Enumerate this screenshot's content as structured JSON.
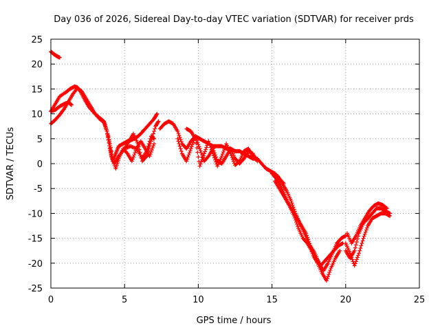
{
  "chart_data": {
    "type": "scatter",
    "title": "Day 036 of 2026, Sidereal Day-to-day VTEC variation (SDTVAR) for receiver prds",
    "xlabel": "GPS time / hours",
    "ylabel": "SDTVAR / TECUs",
    "xlim": [
      0,
      25
    ],
    "ylim": [
      -25,
      25
    ],
    "xticks": [
      0,
      5,
      10,
      15,
      20,
      25
    ],
    "yticks": [
      -25,
      -20,
      -15,
      -10,
      -5,
      0,
      5,
      10,
      15,
      20,
      25
    ],
    "grid": true,
    "marker": "+",
    "color": "#ff0000",
    "series": [
      {
        "name": "s1",
        "x": [
          0.0,
          0.2,
          0.4,
          0.6
        ],
        "y": [
          22.5,
          22.0,
          21.6,
          21.3
        ]
      },
      {
        "name": "s2",
        "x": [
          0.0,
          0.3,
          0.6,
          1.0,
          1.3,
          1.6,
          1.8,
          2.0,
          2.3,
          2.6,
          3.0,
          3.3,
          3.6,
          3.8,
          4.0,
          4.2,
          4.4,
          4.6,
          4.9,
          5.2,
          5.5,
          5.8,
          6.1,
          6.4,
          6.7,
          7.0,
          7.2
        ],
        "y": [
          10.5,
          12.0,
          13.5,
          14.3,
          15.0,
          15.5,
          15.3,
          14.5,
          12.8,
          11.3,
          10.0,
          9.2,
          8.5,
          6.5,
          3.0,
          0.5,
          2.0,
          3.5,
          4.0,
          4.5,
          4.8,
          5.2,
          6.0,
          7.0,
          8.0,
          9.0,
          10.0
        ]
      },
      {
        "name": "s3",
        "x": [
          0.0,
          0.3,
          0.6,
          0.9,
          1.2,
          1.5,
          1.8,
          2.1,
          2.4,
          2.7,
          3.0,
          3.3,
          3.6,
          3.8,
          4.0,
          4.1,
          4.3,
          4.6,
          5.0,
          5.4,
          5.8,
          6.2,
          6.5,
          6.8,
          7.0
        ],
        "y": [
          8.0,
          8.8,
          9.8,
          11.0,
          12.5,
          14.0,
          15.2,
          14.5,
          13.0,
          11.5,
          10.0,
          9.0,
          8.3,
          6.5,
          4.0,
          1.5,
          0.0,
          1.5,
          3.0,
          3.5,
          3.0,
          1.0,
          2.5,
          5.5,
          5.0
        ]
      },
      {
        "name": "s4",
        "x": [
          0.0,
          0.3,
          0.6,
          0.9,
          1.2,
          1.4
        ],
        "y": [
          10.5,
          10.8,
          11.5,
          12.0,
          12.3,
          11.8
        ]
      },
      {
        "name": "s5",
        "x": [
          3.9,
          4.2,
          4.4,
          4.6,
          4.9,
          5.2,
          5.5,
          5.8,
          6.1,
          6.4,
          6.7,
          7.0
        ],
        "y": [
          5.5,
          1.0,
          -1.0,
          1.0,
          3.0,
          2.0,
          0.5,
          3.0,
          4.5,
          3.0,
          1.5,
          4.0
        ]
      },
      {
        "name": "s6",
        "x": [
          5.0,
          5.3,
          5.6,
          5.9,
          6.2,
          6.5,
          6.8,
          7.1,
          7.3
        ],
        "y": [
          3.0,
          4.5,
          6.0,
          4.0,
          0.5,
          1.5,
          4.5,
          7.5,
          8.5
        ]
      },
      {
        "name": "s7",
        "x": [
          7.4,
          7.7,
          8.0,
          8.3,
          8.6,
          8.9,
          9.2,
          9.5,
          9.8,
          10.1,
          10.4,
          10.7,
          11.0,
          11.3,
          11.6,
          11.9,
          12.2,
          12.5,
          12.8,
          13.1,
          13.4,
          13.7,
          14.0,
          14.3,
          14.6,
          14.9,
          15.2,
          15.5,
          15.8
        ],
        "y": [
          7.0,
          8.0,
          8.5,
          8.0,
          6.5,
          4.0,
          3.0,
          4.5,
          5.5,
          5.0,
          4.5,
          4.0,
          3.5,
          3.5,
          3.5,
          3.0,
          3.0,
          2.5,
          2.5,
          2.0,
          1.5,
          1.0,
          1.0,
          0.0,
          -1.0,
          -1.5,
          -2.0,
          -3.0,
          -4.0
        ]
      },
      {
        "name": "s8",
        "x": [
          8.6,
          8.9,
          9.2,
          9.5,
          9.8,
          10.1,
          10.4,
          10.7,
          11.0,
          11.3,
          11.6,
          11.9,
          12.2,
          12.5,
          12.8,
          13.1,
          13.4,
          13.7,
          14.0
        ],
        "y": [
          5.0,
          2.0,
          0.5,
          3.0,
          5.5,
          3.0,
          0.5,
          1.5,
          3.0,
          0.5,
          0.0,
          1.5,
          3.0,
          1.0,
          0.0,
          1.0,
          2.5,
          2.0,
          0.5
        ]
      },
      {
        "name": "s9",
        "x": [
          9.2,
          9.5,
          9.8,
          10.1,
          10.4,
          10.7,
          11.0,
          11.3,
          11.6,
          11.9,
          12.2,
          12.5,
          12.8,
          13.1,
          13.4,
          13.7
        ],
        "y": [
          7.0,
          6.5,
          5.0,
          -0.5,
          2.0,
          4.5,
          2.0,
          -0.5,
          1.5,
          4.0,
          2.0,
          -0.3,
          0.5,
          2.5,
          3.0,
          1.5
        ]
      },
      {
        "name": "s10",
        "x": [
          15.0,
          15.3,
          15.6,
          15.9,
          16.2,
          16.5,
          16.8,
          17.1,
          17.4,
          17.7,
          18.0,
          18.3,
          18.6,
          18.9,
          19.2,
          19.5,
          19.8
        ],
        "y": [
          -2.0,
          -3.0,
          -4.5,
          -6.5,
          -8.5,
          -10.5,
          -13.0,
          -15.0,
          -16.0,
          -17.5,
          -19.0,
          -20.5,
          -19.5,
          -18.5,
          -17.5,
          -16.5,
          -16.0
        ]
      },
      {
        "name": "s11",
        "x": [
          15.4,
          15.7,
          16.0,
          16.3,
          16.6,
          16.9,
          17.2,
          17.5,
          17.8,
          18.1,
          18.4,
          18.7,
          19.0,
          19.3,
          19.6
        ],
        "y": [
          -2.5,
          -4.0,
          -5.5,
          -7.5,
          -10.0,
          -12.0,
          -14.0,
          -16.0,
          -18.5,
          -20.0,
          -22.0,
          -23.5,
          -21.0,
          -19.0,
          -17.5
        ]
      },
      {
        "name": "s12",
        "x": [
          15.2,
          15.5,
          15.8,
          16.1,
          16.4,
          16.7,
          17.0,
          17.3,
          17.6,
          17.9,
          18.2,
          18.5,
          18.8,
          19.1,
          19.4,
          19.7,
          20.0
        ],
        "y": [
          -3.5,
          -5.0,
          -6.5,
          -8.0,
          -9.5,
          -11.0,
          -12.5,
          -14.0,
          -16.5,
          -18.0,
          -20.0,
          -21.5,
          -20.0,
          -18.0,
          -16.0,
          -15.0,
          -14.5
        ]
      },
      {
        "name": "s13",
        "x": [
          20.0,
          20.3,
          20.6,
          20.9,
          21.2,
          21.5,
          21.8,
          22.1,
          22.4,
          22.7,
          23.0
        ],
        "y": [
          -17.5,
          -19.0,
          -17.5,
          -14.0,
          -12.0,
          -11.0,
          -10.0,
          -9.0,
          -9.0,
          -9.5,
          -10.0
        ]
      },
      {
        "name": "s14",
        "x": [
          20.0,
          20.3,
          20.6,
          20.9,
          21.2,
          21.5,
          21.8,
          22.1,
          22.4,
          22.7,
          23.0
        ],
        "y": [
          -16.0,
          -18.0,
          -20.5,
          -18.0,
          -15.0,
          -12.5,
          -11.0,
          -10.5,
          -10.0,
          -10.0,
          -10.5
        ]
      },
      {
        "name": "s15",
        "x": [
          20.1,
          20.4,
          20.7,
          21.0,
          21.3,
          21.6,
          21.9,
          22.2,
          22.5,
          22.8
        ],
        "y": [
          -14.0,
          -16.0,
          -14.5,
          -12.5,
          -11.0,
          -9.5,
          -8.5,
          -8.0,
          -8.3,
          -9.0
        ]
      }
    ]
  }
}
